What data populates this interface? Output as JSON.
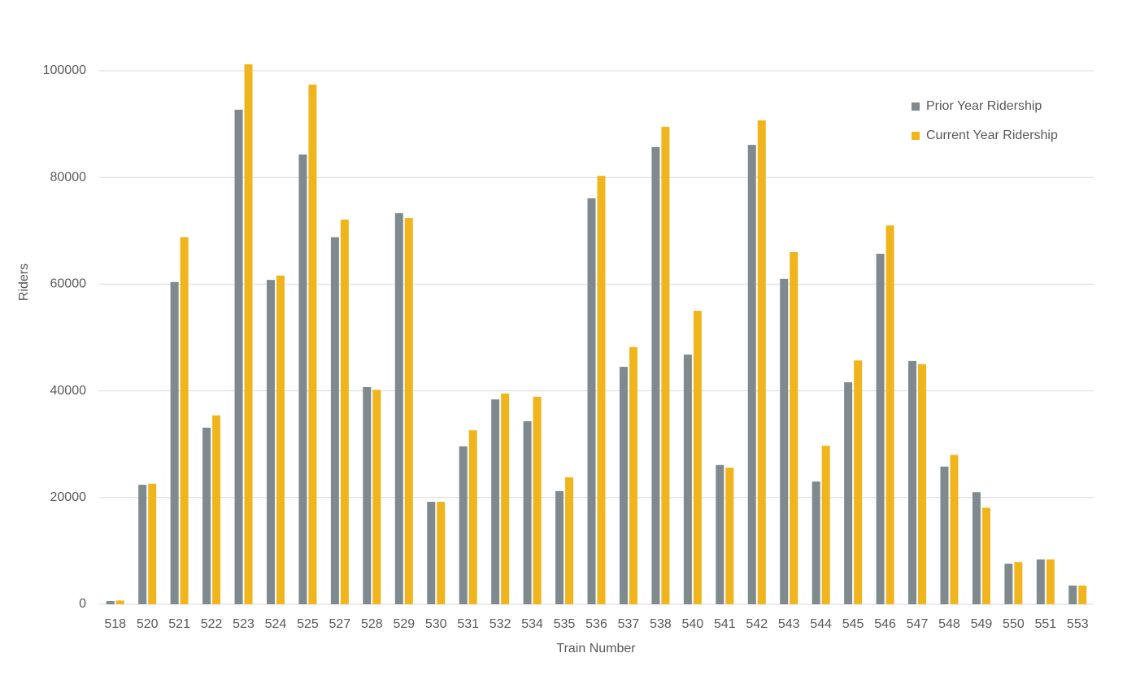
{
  "chart_data": {
    "type": "bar",
    "x_label": "Train Number",
    "y_label": "Riders",
    "categories": [
      "518",
      "520",
      "521",
      "522",
      "523",
      "524",
      "525",
      "527",
      "528",
      "529",
      "530",
      "531",
      "532",
      "534",
      "535",
      "536",
      "537",
      "538",
      "540",
      "541",
      "542",
      "543",
      "544",
      "545",
      "546",
      "547",
      "548",
      "549",
      "550",
      "551",
      "553"
    ],
    "series": [
      {
        "name": "Prior Year Ridership",
        "color": "#7f898e",
        "values": [
          600,
          22400,
          60400,
          33100,
          92700,
          60800,
          84300,
          68800,
          40700,
          73300,
          19200,
          29600,
          38400,
          34300,
          21200,
          76100,
          44500,
          85700,
          46800,
          26100,
          86100,
          61000,
          23000,
          41600,
          65700,
          45600,
          25800,
          21000,
          7600,
          8400,
          3500
        ]
      },
      {
        "name": "Current Year Ridership",
        "color": "#f0b41c",
        "values": [
          700,
          22600,
          68800,
          35400,
          101200,
          61600,
          97400,
          72100,
          40200,
          72400,
          19200,
          32600,
          39500,
          38900,
          23800,
          80300,
          48200,
          89500,
          55000,
          25600,
          90700,
          66000,
          29700,
          45700,
          71000,
          45000,
          28000,
          18100,
          7900,
          8400,
          3500
        ]
      }
    ],
    "ylim": [
      0,
      110000
    ],
    "yticks": [
      0,
      20000,
      40000,
      60000,
      80000,
      100000
    ],
    "grid": true,
    "legend": "upper right"
  }
}
